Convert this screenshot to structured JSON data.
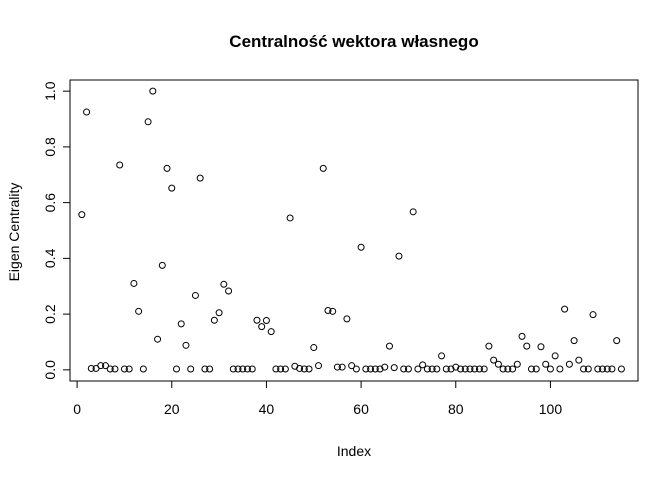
{
  "chart_data": {
    "type": "scatter",
    "title": "Centralność wektora własnego",
    "xlabel": "Index",
    "ylabel": "Eigen Centrality",
    "xlim": [
      -1.5,
      118.5
    ],
    "ylim": [
      -0.04,
      1.04
    ],
    "xticks": [
      0,
      20,
      40,
      60,
      80,
      100
    ],
    "yticks": [
      "0.0",
      "0.2",
      "0.4",
      "0.6",
      "0.8",
      "1.0"
    ],
    "grid": false,
    "legend": "none",
    "marker": "open-circle",
    "x": [
      1,
      2,
      3,
      4,
      5,
      6,
      7,
      8,
      9,
      10,
      11,
      12,
      13,
      14,
      15,
      16,
      17,
      18,
      19,
      20,
      21,
      22,
      23,
      24,
      25,
      26,
      27,
      28,
      29,
      30,
      31,
      32,
      33,
      34,
      35,
      36,
      37,
      38,
      39,
      40,
      41,
      42,
      43,
      44,
      45,
      46,
      47,
      48,
      49,
      50,
      51,
      52,
      53,
      54,
      55,
      56,
      57,
      58,
      59,
      60,
      61,
      62,
      63,
      64,
      65,
      66,
      67,
      68,
      69,
      70,
      71,
      72,
      73,
      74,
      75,
      76,
      77,
      78,
      79,
      80,
      81,
      82,
      83,
      84,
      85,
      86,
      87,
      88,
      89,
      90,
      91,
      92,
      93,
      94,
      95,
      96,
      97,
      98,
      99,
      100,
      101,
      102,
      103,
      104,
      105,
      106,
      107,
      108,
      109,
      110,
      111,
      112,
      113,
      114,
      115
    ],
    "y": [
      0.557,
      0.925,
      0.005,
      0.005,
      0.015,
      0.015,
      0.003,
      0.003,
      0.735,
      0.003,
      0.003,
      0.31,
      0.21,
      0.003,
      0.89,
      1.0,
      0.11,
      0.375,
      0.723,
      0.652,
      0.003,
      0.165,
      0.088,
      0.003,
      0.267,
      0.688,
      0.003,
      0.003,
      0.178,
      0.205,
      0.307,
      0.283,
      0.003,
      0.003,
      0.003,
      0.003,
      0.003,
      0.178,
      0.155,
      0.177,
      0.137,
      0.003,
      0.003,
      0.003,
      0.545,
      0.013,
      0.005,
      0.003,
      0.003,
      0.08,
      0.015,
      0.723,
      0.213,
      0.21,
      0.01,
      0.01,
      0.183,
      0.015,
      0.003,
      0.44,
      0.003,
      0.003,
      0.003,
      0.003,
      0.01,
      0.085,
      0.008,
      0.408,
      0.003,
      0.003,
      0.567,
      0.003,
      0.018,
      0.003,
      0.003,
      0.003,
      0.05,
      0.003,
      0.003,
      0.01,
      0.003,
      0.003,
      0.003,
      0.003,
      0.003,
      0.003,
      0.085,
      0.035,
      0.02,
      0.003,
      0.003,
      0.003,
      0.02,
      0.12,
      0.085,
      0.003,
      0.003,
      0.083,
      0.02,
      0.003,
      0.05,
      0.003,
      0.218,
      0.02,
      0.105,
      0.035,
      0.003,
      0.003,
      0.198,
      0.003,
      0.003,
      0.003,
      0.003,
      0.105,
      0.003
    ]
  }
}
